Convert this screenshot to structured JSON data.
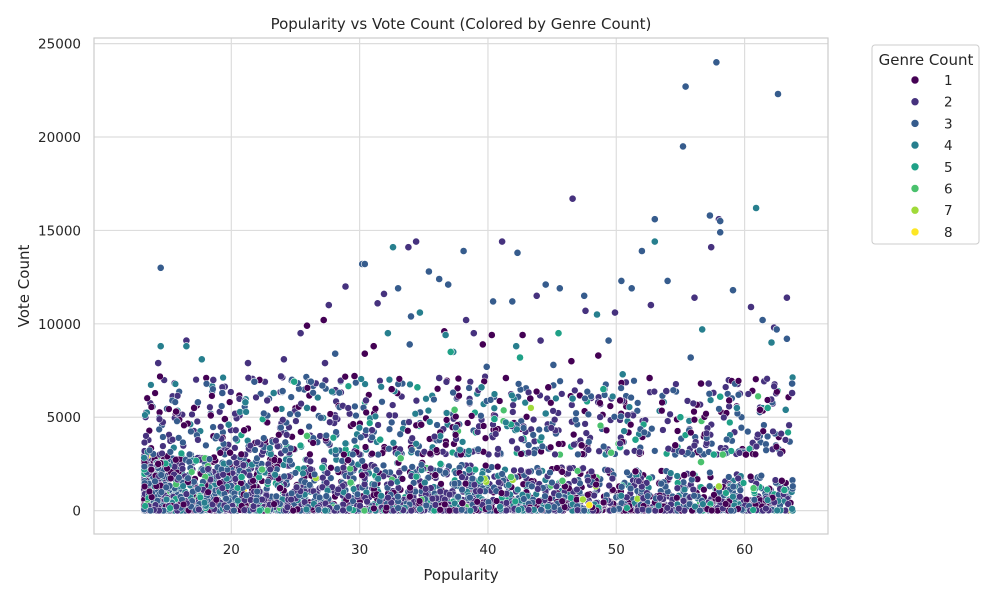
{
  "chart_data": {
    "type": "scatter",
    "title": "Popularity vs Vote Count (Colored by Genre Count)",
    "xlabel": "Popularity",
    "ylabel": "Vote Count",
    "xlim": [
      9.3,
      66.5
    ],
    "ylim": [
      -1250,
      25300
    ],
    "xticks": [
      20,
      30,
      40,
      50,
      60
    ],
    "yticks": [
      0,
      5000,
      10000,
      15000,
      20000,
      25000
    ],
    "grid": true,
    "legend": {
      "title": "Genre Count",
      "placement": "outside-top-right",
      "entries": [
        {
          "label": "1",
          "color": "#440154"
        },
        {
          "label": "2",
          "color": "#46327e"
        },
        {
          "label": "3",
          "color": "#365c8d"
        },
        {
          "label": "4",
          "color": "#277f8e"
        },
        {
          "label": "5",
          "color": "#1fa187"
        },
        {
          "label": "6",
          "color": "#4ac16d"
        },
        {
          "label": "7",
          "color": "#a0da39"
        },
        {
          "label": "8",
          "color": "#fde725"
        }
      ]
    },
    "series": [
      {
        "name": "1",
        "color": "#440154",
        "points": [
          [
            14.3,
            2500
          ],
          [
            15.7,
            5300
          ],
          [
            17.1,
            5500
          ],
          [
            18.4,
            5100
          ],
          [
            19.5,
            4900
          ],
          [
            21.0,
            4300
          ],
          [
            22.2,
            7000
          ],
          [
            25.9,
            9900
          ],
          [
            27.2,
            10200
          ],
          [
            29.6,
            7200
          ],
          [
            30.4,
            8400
          ],
          [
            31.1,
            8800
          ],
          [
            32.5,
            6500
          ],
          [
            34.8,
            4600
          ],
          [
            36.6,
            9600
          ],
          [
            39.6,
            8900
          ],
          [
            40.3,
            9400
          ],
          [
            41.4,
            7100
          ],
          [
            42.7,
            9400
          ],
          [
            43.3,
            6000
          ],
          [
            44.7,
            6600
          ],
          [
            46.5,
            8000
          ],
          [
            47.3,
            3500
          ],
          [
            48.6,
            8300
          ],
          [
            50.3,
            5900
          ],
          [
            51.5,
            2100
          ],
          [
            52.6,
            7100
          ],
          [
            54.6,
            3500
          ],
          [
            56.6,
            6800
          ],
          [
            58.8,
            5900
          ],
          [
            60.1,
            3000
          ],
          [
            61.2,
            5400
          ],
          [
            62.9,
            1600
          ],
          [
            35.9,
            1900
          ],
          [
            29.1,
            2700
          ],
          [
            23.8,
            1200
          ],
          [
            19.9,
            3100
          ],
          [
            46.0,
            1300
          ],
          [
            55.3,
            1900
          ],
          [
            38.0,
            400
          ]
        ]
      },
      {
        "name": "2",
        "color": "#46327e",
        "points": [
          [
            14.3,
            7900
          ],
          [
            16.5,
            9100
          ],
          [
            18.6,
            7000
          ],
          [
            21.3,
            7900
          ],
          [
            24.1,
            8100
          ],
          [
            25.4,
            9500
          ],
          [
            27.3,
            7900
          ],
          [
            27.6,
            11000
          ],
          [
            28.9,
            12000
          ],
          [
            31.4,
            11100
          ],
          [
            31.9,
            11600
          ],
          [
            33.8,
            14100
          ],
          [
            34.4,
            14400
          ],
          [
            38.3,
            10200
          ],
          [
            38.9,
            9500
          ],
          [
            41.1,
            14400
          ],
          [
            43.8,
            11500
          ],
          [
            46.6,
            16700
          ],
          [
            47.6,
            10700
          ],
          [
            49.9,
            10600
          ],
          [
            52.7,
            11000
          ],
          [
            56.1,
            11400
          ],
          [
            57.4,
            14100
          ],
          [
            58.0,
            15600
          ],
          [
            60.5,
            10900
          ],
          [
            62.3,
            9800
          ],
          [
            63.3,
            11400
          ],
          [
            63.7,
            6300
          ],
          [
            57.2,
            6800
          ],
          [
            53.9,
            6400
          ],
          [
            44.1,
            9100
          ],
          [
            36.2,
            7100
          ],
          [
            30.5,
            5900
          ],
          [
            22.8,
            5900
          ]
        ]
      },
      {
        "name": "3",
        "color": "#365c8d",
        "points": [
          [
            14.5,
            13000
          ],
          [
            17.4,
            5800
          ],
          [
            19.3,
            6300
          ],
          [
            21.8,
            6900
          ],
          [
            24.0,
            6400
          ],
          [
            26.2,
            6900
          ],
          [
            28.1,
            8400
          ],
          [
            30.2,
            13200
          ],
          [
            30.4,
            13200
          ],
          [
            33.0,
            11900
          ],
          [
            34.0,
            10400
          ],
          [
            35.4,
            12800
          ],
          [
            36.2,
            12400
          ],
          [
            36.9,
            12100
          ],
          [
            38.1,
            13900
          ],
          [
            40.4,
            11200
          ],
          [
            41.9,
            11200
          ],
          [
            42.3,
            13800
          ],
          [
            44.5,
            12100
          ],
          [
            45.6,
            11900
          ],
          [
            47.5,
            11500
          ],
          [
            50.4,
            12300
          ],
          [
            51.2,
            11900
          ],
          [
            52.0,
            13900
          ],
          [
            53.0,
            15600
          ],
          [
            54.0,
            12300
          ],
          [
            55.2,
            19500
          ],
          [
            55.4,
            22700
          ],
          [
            57.3,
            15800
          ],
          [
            57.8,
            24000
          ],
          [
            58.1,
            14900
          ],
          [
            58.1,
            15500
          ],
          [
            59.1,
            11800
          ],
          [
            61.4,
            10200
          ],
          [
            62.5,
            9700
          ],
          [
            62.6,
            22300
          ],
          [
            63.3,
            9200
          ],
          [
            63.7,
            6800
          ],
          [
            55.8,
            8200
          ],
          [
            49.4,
            9100
          ],
          [
            45.1,
            7800
          ],
          [
            39.9,
            7700
          ],
          [
            33.9,
            8900
          ],
          [
            27.1,
            6700
          ]
        ]
      },
      {
        "name": "4",
        "color": "#277f8e",
        "points": [
          [
            14.5,
            8800
          ],
          [
            16.5,
            8800
          ],
          [
            17.7,
            8100
          ],
          [
            23.3,
            6300
          ],
          [
            28.9,
            3600
          ],
          [
            32.2,
            9500
          ],
          [
            32.6,
            14100
          ],
          [
            34.7,
            10600
          ],
          [
            36.7,
            9400
          ],
          [
            37.3,
            8500
          ],
          [
            42.2,
            8800
          ],
          [
            46.6,
            6000
          ],
          [
            48.5,
            10500
          ],
          [
            53.0,
            14400
          ],
          [
            56.7,
            9700
          ],
          [
            60.9,
            16200
          ],
          [
            62.1,
            9000
          ],
          [
            63.2,
            5400
          ],
          [
            59.4,
            5500
          ],
          [
            50.5,
            7300
          ],
          [
            39.5,
            6600
          ],
          [
            25.9,
            5500
          ],
          [
            19.8,
            4600
          ],
          [
            21.1,
            5800
          ],
          [
            44.5,
            5200
          ]
        ]
      },
      {
        "name": "5",
        "color": "#1fa187",
        "points": [
          [
            24.9,
            6900
          ],
          [
            34.5,
            6600
          ],
          [
            37.1,
            8500
          ],
          [
            42.5,
            8200
          ],
          [
            45.5,
            9500
          ],
          [
            49.0,
            6500
          ],
          [
            51.5,
            3800
          ],
          [
            55.0,
            5000
          ],
          [
            58.1,
            6100
          ],
          [
            61.8,
            5500
          ],
          [
            31.6,
            3800
          ],
          [
            27.1,
            2300
          ],
          [
            20.8,
            1800
          ],
          [
            40.5,
            4900
          ],
          [
            57.6,
            3000
          ],
          [
            63.1,
            1100
          ],
          [
            36.3,
            2500
          ]
        ]
      },
      {
        "name": "6",
        "color": "#4ac16d",
        "points": [
          [
            25.9,
            4000
          ],
          [
            37.4,
            5400
          ],
          [
            41.8,
            1800
          ],
          [
            45.8,
            1600
          ],
          [
            49.6,
            3100
          ],
          [
            56.6,
            2600
          ],
          [
            60.7,
            1200
          ],
          [
            33.2,
            2800
          ],
          [
            58.3,
            3000
          ],
          [
            29.3,
            1500
          ],
          [
            22.4,
            2200
          ]
        ]
      },
      {
        "name": "7",
        "color": "#a0da39",
        "points": [
          [
            58.0,
            1300
          ],
          [
            47.4,
            600
          ]
        ]
      },
      {
        "name": "8",
        "color": "#fde725",
        "points": [
          [
            47.9,
            300
          ]
        ]
      }
    ]
  }
}
